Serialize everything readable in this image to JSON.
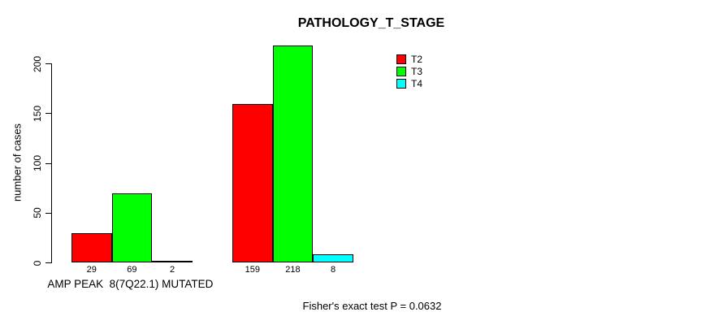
{
  "title": "PATHOLOGY_T_STAGE",
  "footer": "Fisher's exact test P = 0.0632",
  "chart_data": {
    "type": "bar",
    "title": "PATHOLOGY_T_STAGE",
    "xlabel": "",
    "ylabel": "number of cases",
    "ylim": [
      0,
      200
    ],
    "yticks": [
      0,
      50,
      100,
      150,
      200
    ],
    "grid": false,
    "legend_position": "top-right",
    "bar_value_labels_shown": true,
    "categories": [
      "AMP PEAK  8(7Q22.1) MUTATED",
      ""
    ],
    "series": [
      {
        "name": "T2",
        "color": "#ff0000",
        "values": [
          29,
          159
        ]
      },
      {
        "name": "T3",
        "color": "#00ff00",
        "values": [
          69,
          218
        ]
      },
      {
        "name": "T4",
        "color": "#00ffff",
        "values": [
          2,
          8
        ]
      }
    ],
    "annotation": "Fisher's exact test P = 0.0632"
  }
}
